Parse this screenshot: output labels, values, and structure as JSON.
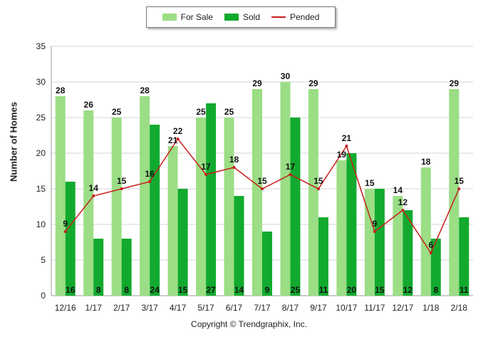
{
  "chart_data": {
    "type": "bar",
    "categories": [
      "12/16",
      "1/17",
      "2/17",
      "3/17",
      "4/17",
      "5/17",
      "6/17",
      "7/17",
      "8/17",
      "9/17",
      "10/17",
      "11/17",
      "12/17",
      "1/18",
      "2/18"
    ],
    "series": [
      {
        "name": "For Sale",
        "type": "bar",
        "color": "#9bde85",
        "values": [
          28,
          26,
          25,
          28,
          21,
          25,
          25,
          29,
          30,
          29,
          19,
          15,
          14,
          18,
          29
        ]
      },
      {
        "name": "Sold",
        "type": "bar",
        "color": "#12aa2e",
        "values": [
          16,
          8,
          8,
          24,
          15,
          27,
          14,
          9,
          25,
          11,
          20,
          15,
          12,
          8,
          11
        ]
      },
      {
        "name": "Pended",
        "type": "line",
        "color": "#c81e1e",
        "values": [
          9,
          14,
          15,
          16,
          22,
          17,
          18,
          15,
          17,
          15,
          21,
          9,
          12,
          6,
          15
        ]
      }
    ],
    "ylabel": "Number of Homes",
    "ylim": [
      0,
      35
    ],
    "yticks": [
      0,
      5,
      10,
      15,
      20,
      25,
      30,
      35
    ],
    "grid": true,
    "legend_position": "top-center"
  },
  "legend": {
    "for_sale": "For Sale",
    "sold": "Sold",
    "pended": "Pended"
  },
  "footer": {
    "copyright": "Copyright © Trendgraphix, Inc."
  }
}
